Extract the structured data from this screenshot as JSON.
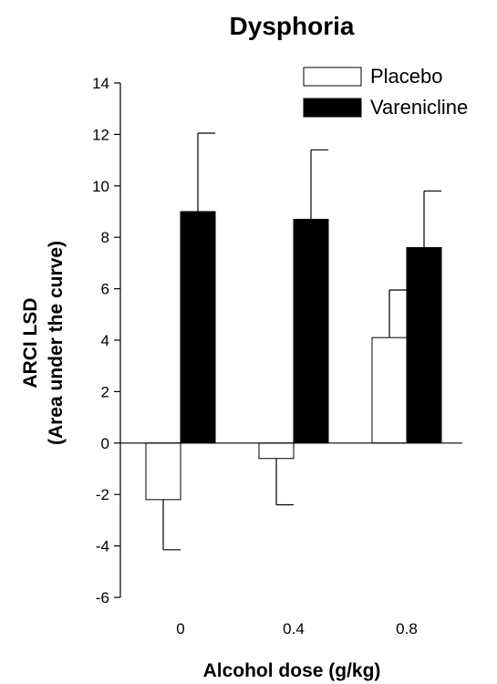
{
  "chart_data": {
    "type": "bar",
    "title": "Dysphoria",
    "xlabel": "Alcohol dose (g/kg)",
    "ylabel_lines": [
      "ARCI LSD",
      "(Area under the curve)"
    ],
    "categories": [
      "0",
      "0.4",
      "0.8"
    ],
    "ylim": [
      -6,
      14
    ],
    "yticks": [
      -6,
      -4,
      -2,
      0,
      2,
      4,
      6,
      8,
      10,
      12,
      14
    ],
    "error_bars": "positive-only",
    "grid": false,
    "legend_position": "top-right",
    "series": [
      {
        "name": "Placebo",
        "values": [
          -2.2,
          -0.6,
          4.1
        ],
        "errors": [
          1.95,
          1.8,
          1.85
        ],
        "fill": "#ffffff",
        "stroke": "#000000"
      },
      {
        "name": "Varenicline",
        "values": [
          9.0,
          8.7,
          7.6
        ],
        "errors": [
          3.05,
          2.7,
          2.2
        ],
        "fill": "#000000",
        "stroke": "#000000"
      }
    ]
  }
}
